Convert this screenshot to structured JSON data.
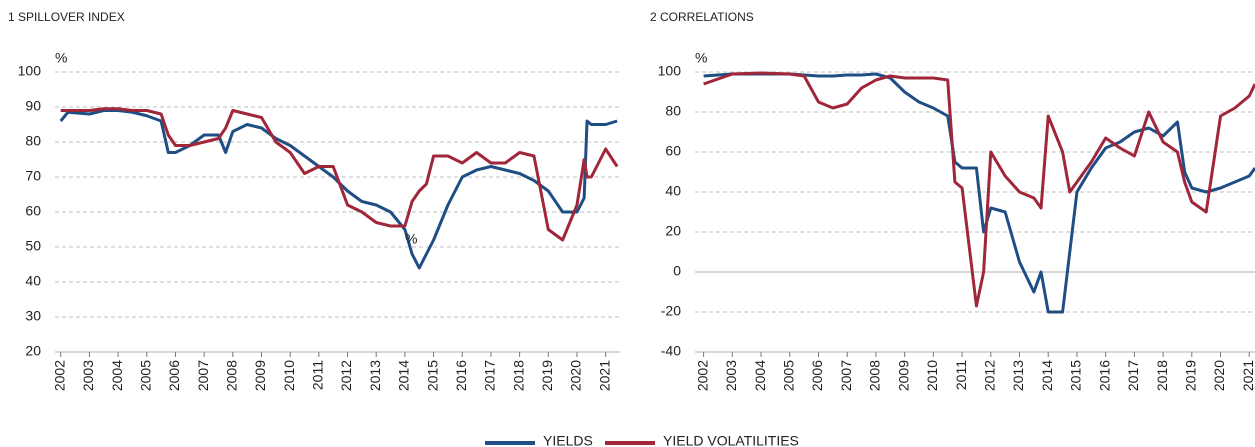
{
  "chart_data": [
    {
      "type": "line",
      "title": "1  SPILLOVER INDEX",
      "y_unit": "%",
      "annotation": "%",
      "x": [
        2002,
        2002.25,
        2003,
        2003.5,
        2004,
        2004.5,
        2005,
        2005.5,
        2005.75,
        2006,
        2006.5,
        2007,
        2007.5,
        2007.75,
        2008,
        2008.5,
        2009,
        2009.5,
        2010,
        2010.5,
        2011,
        2011.5,
        2012,
        2012.5,
        2013,
        2013.5,
        2014,
        2014.25,
        2014.5,
        2014.75,
        2015,
        2015.5,
        2016,
        2016.5,
        2017,
        2017.5,
        2018,
        2018.5,
        2019,
        2019.5,
        2020,
        2020.25,
        2020.35,
        2020.5,
        2021,
        2021.4
      ],
      "series": [
        {
          "name": "YIELDS",
          "color": "#1f4e85",
          "values": [
            86,
            88.5,
            88,
            89,
            89,
            88.5,
            87.5,
            86,
            77,
            77,
            79,
            82,
            82,
            77,
            83,
            85,
            84,
            81,
            79,
            76,
            73,
            70,
            66,
            63,
            62,
            60,
            55,
            48,
            44,
            48,
            52,
            62,
            70,
            72,
            73,
            72,
            71,
            69,
            66,
            60,
            60,
            64,
            86,
            85,
            85,
            86
          ]
        },
        {
          "name": "YIELD VOLATILITIES",
          "color": "#a0263a",
          "values": [
            89,
            89,
            89,
            89.5,
            89.5,
            89,
            89,
            88,
            82,
            79,
            79,
            80,
            81,
            84,
            89,
            88,
            87,
            80,
            77,
            71,
            73,
            73,
            62,
            60,
            57,
            56,
            56,
            63,
            66,
            68,
            76,
            76,
            74,
            77,
            74,
            74,
            77,
            76,
            55,
            52,
            62,
            75,
            70,
            70,
            78,
            73
          ]
        }
      ],
      "xlim": [
        2001.8,
        2021.5
      ],
      "xticks": [
        2002,
        2003,
        2004,
        2005,
        2006,
        2007,
        2008,
        2009,
        2010,
        2011,
        2012,
        2013,
        2014,
        2015,
        2016,
        2017,
        2018,
        2019,
        2020,
        2021
      ],
      "ylim": [
        20,
        100
      ],
      "yticks": [
        20,
        30,
        40,
        50,
        60,
        70,
        80,
        90,
        100
      ],
      "grid": true
    },
    {
      "type": "line",
      "title": "2  CORRELATIONS",
      "y_unit": "%",
      "x": [
        2002,
        2003,
        2004,
        2005,
        2005.5,
        2006,
        2006.5,
        2007,
        2007.5,
        2008,
        2008.5,
        2009,
        2009.5,
        2010,
        2010.5,
        2010.75,
        2011,
        2011.5,
        2011.75,
        2012,
        2012.5,
        2013,
        2013.5,
        2013.75,
        2014,
        2014.5,
        2014.75,
        2015,
        2015.5,
        2016,
        2016.5,
        2017,
        2017.5,
        2018,
        2018.5,
        2018.75,
        2019,
        2019.5,
        2020,
        2020.5,
        2021,
        2021.2
      ],
      "series": [
        {
          "color": "#1f4e85",
          "values": [
            98,
            99,
            99,
            99,
            98.5,
            98,
            98,
            98.5,
            98.5,
            99,
            97,
            90,
            85,
            82,
            78,
            55,
            52,
            52,
            20,
            32,
            30,
            5,
            -10,
            0,
            -20,
            -20,
            10,
            40,
            52,
            62,
            65,
            70,
            72,
            68,
            75,
            50,
            42,
            40,
            42,
            45,
            48,
            52
          ]
        },
        {
          "color": "#a0263a",
          "values": [
            94,
            99,
            99.5,
            99,
            98,
            85,
            82,
            84,
            92,
            96,
            98,
            97,
            97,
            97,
            96,
            45,
            42,
            -17,
            0,
            60,
            48,
            40,
            37,
            32,
            78,
            60,
            40,
            45,
            55,
            67,
            62,
            58,
            80,
            65,
            60,
            45,
            35,
            30,
            78,
            82,
            88,
            94
          ]
        }
      ],
      "xlim": [
        2001.7,
        2021.2
      ],
      "xticks": [
        2002,
        2003,
        2004,
        2005,
        2006,
        2007,
        2008,
        2009,
        2010,
        2011,
        2012,
        2013,
        2014,
        2015,
        2016,
        2017,
        2018,
        2019,
        2020,
        2021
      ],
      "ylim": [
        -40,
        100
      ],
      "yticks": [
        -40,
        -20,
        0,
        20,
        40,
        60,
        80,
        100
      ],
      "grid": true
    }
  ]
}
